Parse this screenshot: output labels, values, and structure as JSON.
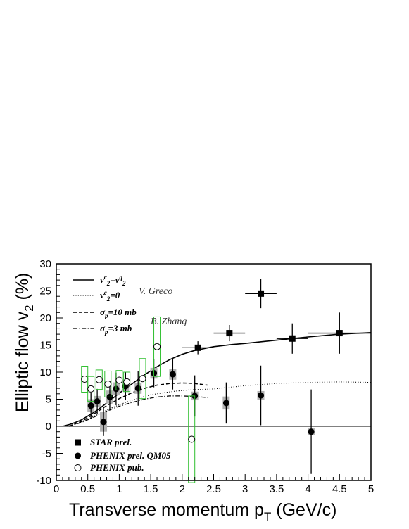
{
  "chart_data": {
    "type": "scatter",
    "title": "",
    "xlabel_main": "Transverse momentum p",
    "xlabel_sub": "T",
    "xlabel_unit": " (GeV/c)",
    "ylabel_main": "Elliptic flow v",
    "ylabel_sub": "2",
    "ylabel_unit": " (%)",
    "xlim": [
      0,
      5
    ],
    "ylim": [
      -10,
      30
    ],
    "x_ticks": [
      "0",
      "0.5",
      "1",
      "1.5",
      "2",
      "2.5",
      "3",
      "3.5",
      "4",
      "4.5",
      "5"
    ],
    "y_ticks": [
      "-10",
      "-5",
      "0",
      "5",
      "10",
      "15",
      "20",
      "25",
      "30"
    ],
    "legend_markers": [
      {
        "name": "STAR prel.",
        "marker": "square-filled"
      },
      {
        "name": "PHENIX prel. QM05",
        "marker": "circle-filled"
      },
      {
        "name": "PHENIX pub.",
        "marker": "circle-open"
      }
    ],
    "legend_curves": [
      {
        "parts": [
          [
            "v",
            ""
          ],
          [
            "c",
            "sup"
          ],
          [
            "2",
            "sub"
          ],
          [
            "=v",
            ""
          ],
          [
            "q",
            "sup"
          ],
          [
            "2",
            "sub"
          ]
        ],
        "style": "solid"
      },
      {
        "parts": [
          [
            "v",
            ""
          ],
          [
            "c",
            "sup"
          ],
          [
            "2",
            "sub"
          ],
          [
            "=0",
            ""
          ]
        ],
        "style": "dotted"
      },
      {
        "parts": [
          [
            "σ",
            ""
          ],
          [
            "p",
            "sub"
          ],
          [
            "=10 mb",
            ""
          ]
        ],
        "style": "dashed"
      },
      {
        "parts": [
          [
            "σ",
            ""
          ],
          [
            "p",
            "sub"
          ],
          [
            "=3 mb",
            ""
          ]
        ],
        "style": "dashdot"
      }
    ],
    "annotations": [
      "V. Greco",
      "B. Zhang"
    ],
    "series": [
      {
        "marker": "square-filled",
        "points": [
          {
            "x": 2.25,
            "y": 14.5,
            "xerr": 0.25,
            "yerr": 1.2
          },
          {
            "x": 2.75,
            "y": 17.2,
            "xerr": 0.25,
            "yerr": 1.5
          },
          {
            "x": 3.25,
            "y": 24.5,
            "xerr": 0.25,
            "yerr": 2.7
          },
          {
            "x": 3.75,
            "y": 16.2,
            "xerr": 0.25,
            "yerr": 2.8
          },
          {
            "x": 4.5,
            "y": 17.2,
            "xerr": 0.5,
            "yerr": 3.8
          }
        ]
      },
      {
        "marker": "circle-filled",
        "points": [
          {
            "x": 0.55,
            "y": 3.8,
            "yerr": 2.3,
            "sys": 1.2
          },
          {
            "x": 0.65,
            "y": 4.6,
            "yerr": 2.3,
            "sys": 1.0
          },
          {
            "x": 0.75,
            "y": 0.8,
            "yerr": 2.6,
            "sys": 1.8
          },
          {
            "x": 0.85,
            "y": 5.4,
            "yerr": 2.5,
            "sys": 1.2
          },
          {
            "x": 0.95,
            "y": 6.9,
            "yerr": 3.0,
            "sys": 1.2
          },
          {
            "x": 1.1,
            "y": 7.4,
            "yerr": 2.6,
            "sys": 1.0
          },
          {
            "x": 1.3,
            "y": 7.0,
            "yerr": 3.2,
            "sys": 1.0
          },
          {
            "x": 1.55,
            "y": 9.8,
            "yerr": 2.6,
            "sys": 1.0
          },
          {
            "x": 1.85,
            "y": 9.6,
            "yerr": 2.8,
            "sys": 1.0
          },
          {
            "x": 2.2,
            "y": 5.6,
            "yerr": 3.8,
            "sys": 0.8
          },
          {
            "x": 2.7,
            "y": 4.3,
            "yerr": 3.8,
            "sys": 1.2
          },
          {
            "x": 3.25,
            "y": 5.7,
            "yerr": 5.5,
            "sys": 0.8
          },
          {
            "x": 4.05,
            "y": -1.0,
            "yerr": 7.8,
            "sys": 0.6
          }
        ]
      },
      {
        "marker": "circle-open",
        "points": [
          {
            "x": 0.45,
            "y": 8.7,
            "sys": 2.4
          },
          {
            "x": 0.55,
            "y": 6.9,
            "sys": 2.3
          },
          {
            "x": 0.68,
            "y": 8.6,
            "sys": 1.8
          },
          {
            "x": 0.82,
            "y": 7.8,
            "sys": 2.4
          },
          {
            "x": 1.0,
            "y": 8.5,
            "sys": 1.8
          },
          {
            "x": 1.12,
            "y": 8.2,
            "sys": 1.8
          },
          {
            "x": 1.37,
            "y": 8.8,
            "sys": 3.7
          },
          {
            "x": 1.6,
            "y": 14.7,
            "sys": 5.5
          },
          {
            "x": 2.15,
            "y": -2.4,
            "sys": 8.0
          }
        ]
      }
    ],
    "curves": [
      {
        "style": "solid",
        "x": [
          0.1,
          0.2,
          0.3,
          0.4,
          0.5,
          0.6,
          0.7,
          0.8,
          0.9,
          1.0,
          1.2,
          1.4,
          1.6,
          1.8,
          2.0,
          2.2,
          2.5,
          2.8,
          3.0,
          3.5,
          4.0,
          4.5,
          5.0
        ],
        "y": [
          0.0,
          0.3,
          0.7,
          1.2,
          1.9,
          2.6,
          3.4,
          4.3,
          5.2,
          6.1,
          7.8,
          9.5,
          11.0,
          12.3,
          13.3,
          14.0,
          14.7,
          15.1,
          15.3,
          15.9,
          16.5,
          17.0,
          17.3
        ]
      },
      {
        "style": "dotted",
        "x": [
          0.1,
          0.3,
          0.5,
          0.7,
          0.9,
          1.1,
          1.3,
          1.5,
          1.7,
          1.9,
          2.1,
          2.3,
          2.5,
          3.0,
          3.5,
          4.0,
          4.5,
          5.0
        ],
        "y": [
          0.0,
          0.5,
          1.3,
          2.4,
          3.5,
          4.4,
          5.2,
          5.8,
          6.2,
          6.5,
          6.7,
          6.8,
          6.9,
          7.5,
          7.9,
          8.1,
          8.2,
          8.1
        ]
      },
      {
        "style": "dashed",
        "x": [
          0.2,
          0.4,
          0.6,
          0.8,
          1.0,
          1.2,
          1.4,
          1.6,
          1.8,
          2.0,
          2.2,
          2.4
        ],
        "y": [
          0.0,
          0.9,
          2.3,
          3.8,
          5.1,
          6.2,
          7.0,
          7.6,
          7.9,
          8.0,
          7.9,
          7.6
        ]
      },
      {
        "style": "dashdot",
        "x": [
          0.2,
          0.4,
          0.6,
          0.8,
          1.0,
          1.2,
          1.4,
          1.6,
          1.8,
          2.0,
          2.2,
          2.4
        ],
        "y": [
          0.0,
          0.7,
          1.7,
          2.8,
          3.7,
          4.4,
          5.0,
          5.4,
          5.6,
          5.6,
          5.5,
          5.3
        ]
      }
    ],
    "zero_line": true,
    "grid": false
  }
}
